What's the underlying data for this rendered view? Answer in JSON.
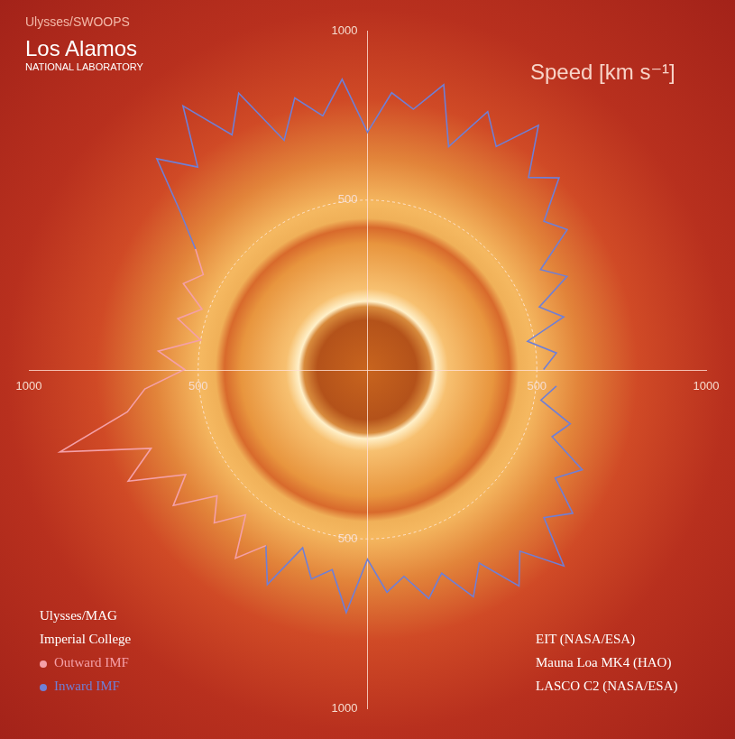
{
  "chart_data": {
    "type": "polar",
    "title": "Speed [km s⁻¹]",
    "annotations": [
      "Ulysses/SWOOPS",
      "Los Alamos",
      "NATIONAL LABORATORY",
      "Ulysses/MAG",
      "Imperial College",
      "EIT (NASA/ESA)",
      "Mauna Loa MK4 (HAO)",
      "LASCO C2 (NASA/ESA)"
    ],
    "x": [
      0,
      5,
      10,
      15,
      20,
      25,
      30,
      35,
      40,
      45,
      50,
      55,
      60,
      65,
      70,
      75,
      80,
      85,
      90,
      95,
      100,
      105,
      110,
      115,
      120,
      125,
      130,
      135,
      140,
      145,
      150,
      155,
      160,
      165,
      170,
      175,
      180,
      185,
      190,
      195,
      200,
      205,
      210,
      215,
      220,
      225,
      230,
      235,
      240,
      245,
      250,
      255,
      260,
      265,
      270,
      275,
      280,
      285,
      290,
      295,
      300,
      305,
      310,
      315,
      320,
      325,
      330,
      335,
      340,
      345,
      350,
      355
    ],
    "series": [
      {
        "name": "Outward IMF",
        "color": "#f4a0a8",
        "values": [
          null,
          null,
          null,
          null,
          null,
          null,
          null,
          null,
          null,
          null,
          null,
          null,
          null,
          null,
          null,
          null,
          null,
          null,
          null,
          null,
          null,
          null,
          null,
          null,
          null,
          null,
          null,
          null,
          null,
          620,
          560,
          600,
          520,
          580,
          500,
          620,
          540,
          660,
          720,
          940,
          680,
          780,
          620,
          700,
          580,
          640,
          560,
          680,
          600,
          null,
          null,
          null,
          null,
          null,
          null,
          null,
          null,
          null,
          null,
          null,
          null,
          null,
          null,
          null,
          null,
          null,
          null,
          null,
          null,
          null,
          null,
          null
        ]
      },
      {
        "name": "Inward IMF",
        "color": "#6f7fd6",
        "values": [
          520,
          560,
          480,
          600,
          540,
          650,
          590,
          720,
          680,
          800,
          740,
          880,
          760,
          840,
          700,
          870,
          780,
          820,
          700,
          860,
          760,
          830,
          720,
          900,
          800,
          950,
          780,
          880,
          720,
          620,
          null,
          null,
          null,
          null,
          null,
          null,
          null,
          null,
          null,
          null,
          null,
          null,
          null,
          null,
          null,
          null,
          null,
          null,
          600,
          700,
          560,
          640,
          600,
          720,
          560,
          660,
          620,
          700,
          640,
          740,
          660,
          780,
          700,
          820,
          680,
          740,
          640,
          700,
          580,
          620,
          520,
          560
        ]
      }
    ],
    "ylim": [
      0,
      1000
    ],
    "yticks": [
      500,
      1000
    ],
    "grid": true,
    "legend": "bottom left"
  }
}
